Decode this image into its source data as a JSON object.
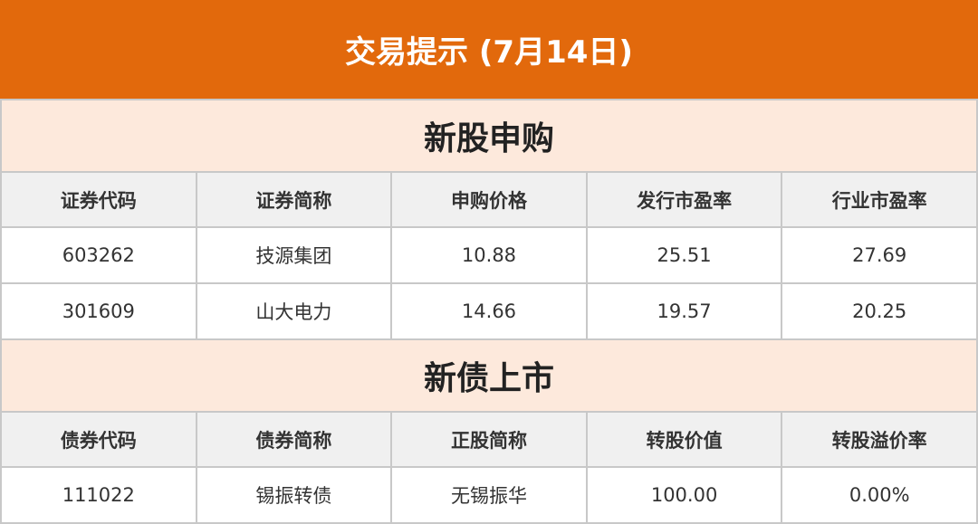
{
  "title": "交易提示 (7月14日)",
  "ipo": {
    "title": "新股申购",
    "headers": [
      "证券代码",
      "证券简称",
      "申购价格",
      "发行市盈率",
      "行业市盈率"
    ],
    "rows": [
      [
        "603262",
        "技源集团",
        "10.88",
        "25.51",
        "27.69"
      ],
      [
        "301609",
        "山大电力",
        "14.66",
        "19.57",
        "20.25"
      ]
    ]
  },
  "bonds": {
    "title": "新债上市",
    "headers": [
      "债券代码",
      "债券简称",
      "正股简称",
      "转股价值",
      "转股溢价率"
    ],
    "rows": [
      [
        "111022",
        "锡振转债",
        "无锡振华",
        "100.00",
        "0.00%"
      ]
    ]
  },
  "colors": {
    "banner": "#E2690C",
    "section": "#FDE9DC",
    "header": "#F0F0F0"
  }
}
